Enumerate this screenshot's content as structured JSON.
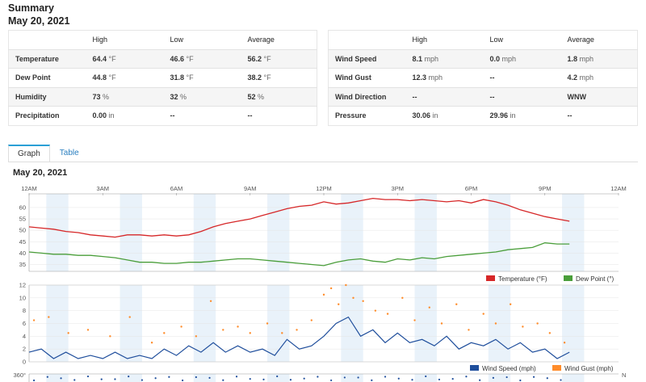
{
  "summary": {
    "title": "Summary",
    "date": "May 20, 2021"
  },
  "table_left": {
    "headers": [
      "",
      "High",
      "Low",
      "Average"
    ],
    "rows": [
      {
        "label": "Temperature",
        "high": "64.4",
        "high_unit": "°F",
        "low": "46.6",
        "low_unit": "°F",
        "avg": "56.2",
        "avg_unit": "°F"
      },
      {
        "label": "Dew Point",
        "high": "44.8",
        "high_unit": "°F",
        "low": "31.8",
        "low_unit": "°F",
        "avg": "38.2",
        "avg_unit": "°F"
      },
      {
        "label": "Humidity",
        "high": "73",
        "high_unit": "%",
        "low": "32",
        "low_unit": "%",
        "avg": "52",
        "avg_unit": "%"
      },
      {
        "label": "Precipitation",
        "high": "0.00",
        "high_unit": "in",
        "low": "--",
        "low_unit": "",
        "avg": "--",
        "avg_unit": ""
      }
    ]
  },
  "table_right": {
    "headers": [
      "",
      "High",
      "Low",
      "Average"
    ],
    "rows": [
      {
        "label": "Wind Speed",
        "high": "8.1",
        "high_unit": "mph",
        "low": "0.0",
        "low_unit": "mph",
        "avg": "1.8",
        "avg_unit": "mph"
      },
      {
        "label": "Wind Gust",
        "high": "12.3",
        "high_unit": "mph",
        "low": "--",
        "low_unit": "",
        "avg": "4.2",
        "avg_unit": "mph"
      },
      {
        "label": "Wind Direction",
        "high": "--",
        "high_unit": "",
        "low": "--",
        "low_unit": "",
        "avg": "WNW",
        "avg_unit": ""
      },
      {
        "label": "Pressure",
        "high": "30.06",
        "high_unit": "in",
        "low": "29.96",
        "low_unit": "in",
        "avg": "--",
        "avg_unit": ""
      }
    ]
  },
  "tabs": [
    {
      "label": "Graph",
      "active": true
    },
    {
      "label": "Table",
      "active": false
    }
  ],
  "graph": {
    "title": "May 20, 2021"
  },
  "chart_data": [
    {
      "type": "line",
      "x_tick_labels": [
        "12AM",
        "3AM",
        "6AM",
        "9AM",
        "12PM",
        "3PM",
        "6PM",
        "9PM",
        "12AM"
      ],
      "x_hours": [
        0,
        3,
        6,
        9,
        12,
        15,
        18,
        21,
        24
      ],
      "ylim": [
        32,
        66
      ],
      "y_ticks": [
        35,
        40,
        45,
        50,
        55,
        60
      ],
      "series": [
        {
          "name": "Temperature (°F)",
          "color": "#d62728",
          "x": [
            0,
            0.5,
            1,
            1.5,
            2,
            2.5,
            3,
            3.5,
            4,
            4.5,
            5,
            5.5,
            6,
            6.5,
            7,
            7.5,
            8,
            8.5,
            9,
            9.5,
            10,
            10.5,
            11,
            11.5,
            12,
            12.5,
            13,
            13.5,
            14,
            14.5,
            15,
            15.5,
            16,
            16.5,
            17,
            17.5,
            18,
            18.5,
            19,
            19.5,
            20,
            20.5,
            21,
            21.5,
            22
          ],
          "y": [
            51.5,
            51,
            50.5,
            49.5,
            49,
            48,
            47.5,
            47,
            48,
            48,
            47.5,
            48,
            47.5,
            48,
            49.5,
            51.5,
            53,
            54,
            55,
            56.5,
            58,
            59.5,
            60.5,
            61,
            62.5,
            61.5,
            62,
            63,
            64,
            63.5,
            63.5,
            63,
            63.5,
            63,
            62.5,
            63,
            62,
            63.5,
            62.5,
            61,
            59,
            57.5,
            56,
            55,
            54
          ]
        },
        {
          "name": "Dew Point (°)",
          "color": "#4a9e3a",
          "x": [
            0,
            0.5,
            1,
            1.5,
            2,
            2.5,
            3,
            3.5,
            4,
            4.5,
            5,
            5.5,
            6,
            6.5,
            7,
            7.5,
            8,
            8.5,
            9,
            9.5,
            10,
            10.5,
            11,
            11.5,
            12,
            12.5,
            13,
            13.5,
            14,
            14.5,
            15,
            15.5,
            16,
            16.5,
            17,
            17.5,
            18,
            18.5,
            19,
            19.5,
            20,
            20.5,
            21,
            21.5,
            22
          ],
          "y": [
            40.5,
            40,
            39.5,
            39.5,
            39,
            39,
            38.5,
            38,
            37,
            36,
            36,
            35.5,
            35.5,
            36,
            36,
            36.5,
            37,
            37.5,
            37.5,
            37,
            36.5,
            36,
            35.5,
            35,
            34.5,
            36,
            37,
            37.5,
            36.5,
            36,
            37.5,
            37,
            38,
            37.5,
            38.5,
            39,
            39.5,
            40,
            40.5,
            41.5,
            42,
            42.5,
            44.5,
            44,
            44
          ]
        }
      ]
    },
    {
      "type": "line",
      "x_tick_labels": [
        "12AM",
        "3AM",
        "6AM",
        "9AM",
        "12PM",
        "3PM",
        "6PM",
        "9PM",
        "12AM"
      ],
      "x_hours": [
        0,
        3,
        6,
        9,
        12,
        15,
        18,
        21,
        24
      ],
      "ylim": [
        0,
        12
      ],
      "y_ticks": [
        0,
        2,
        4,
        6,
        8,
        10,
        12
      ],
      "series": [
        {
          "name": "Wind Speed (mph)",
          "color": "#1f4e9c",
          "x": [
            0,
            0.5,
            1,
            1.5,
            2,
            2.5,
            3,
            3.5,
            4,
            4.5,
            5,
            5.5,
            6,
            6.5,
            7,
            7.5,
            8,
            8.5,
            9,
            9.5,
            10,
            10.5,
            11,
            11.5,
            12,
            12.5,
            13,
            13.5,
            14,
            14.5,
            15,
            15.5,
            16,
            16.5,
            17,
            17.5,
            18,
            18.5,
            19,
            19.5,
            20,
            20.5,
            21,
            21.5,
            22
          ],
          "y": [
            1.5,
            2,
            0.5,
            1.5,
            0.5,
            1,
            0.5,
            1.5,
            0.5,
            1,
            0.5,
            2,
            1,
            2.5,
            1.5,
            3,
            1.5,
            2.5,
            1.5,
            2,
            1,
            3.5,
            2,
            2.5,
            4,
            6,
            7,
            4,
            5,
            3,
            4.5,
            3,
            3.5,
            2.5,
            4,
            2,
            3,
            2.5,
            3.5,
            2,
            3,
            1.5,
            2,
            0.5,
            1.5
          ]
        },
        {
          "name": "Wind Gust (mph)",
          "color": "#ff8c2a",
          "style": "dots",
          "x": [
            0.2,
            0.8,
            1.6,
            2.4,
            3.3,
            4.1,
            5.0,
            5.5,
            6.2,
            6.8,
            7.4,
            7.9,
            8.5,
            9.0,
            9.7,
            10.3,
            10.9,
            11.5,
            12.0,
            12.3,
            12.6,
            12.9,
            13.2,
            13.6,
            14.1,
            14.6,
            15.2,
            15.7,
            16.3,
            16.8,
            17.4,
            17.9,
            18.5,
            19.0,
            19.6,
            20.1,
            20.7,
            21.2,
            21.8
          ],
          "y": [
            6.5,
            7,
            4.5,
            5,
            4,
            7,
            3,
            4.5,
            5.5,
            4,
            9.5,
            5,
            5.5,
            4.5,
            6,
            4.5,
            5,
            6.5,
            10.5,
            11.5,
            9,
            12,
            10,
            9.5,
            8,
            7.5,
            10,
            6.5,
            8.5,
            6,
            9,
            5,
            7.5,
            6,
            9,
            5.5,
            6,
            4.5,
            3
          ]
        }
      ]
    },
    {
      "type": "scatter",
      "y_tick_labels": [
        "360°"
      ],
      "x_tick_labels": [
        "N"
      ],
      "series": []
    }
  ],
  "chart_colors": {
    "night_band": "#e9f2fa",
    "grid": "#e4e4e4",
    "axis": "#999999",
    "temp": "#d62728",
    "dew": "#4a9e3a",
    "wind_speed": "#1f4e9c",
    "wind_gust": "#ff8c2a",
    "direction": "#1f4e9c"
  },
  "legend1": [
    {
      "label": "Temperature (°F)",
      "color": "#d62728"
    },
    {
      "label": "Dew Point (°)",
      "color": "#4a9e3a"
    }
  ],
  "legend2": [
    {
      "label": "Wind Speed (mph)",
      "color": "#1f4e9c"
    },
    {
      "label": "Wind Gust (mph)",
      "color": "#ff8c2a"
    }
  ],
  "direction_axis": {
    "y_label": "360°",
    "right_label": "N"
  }
}
